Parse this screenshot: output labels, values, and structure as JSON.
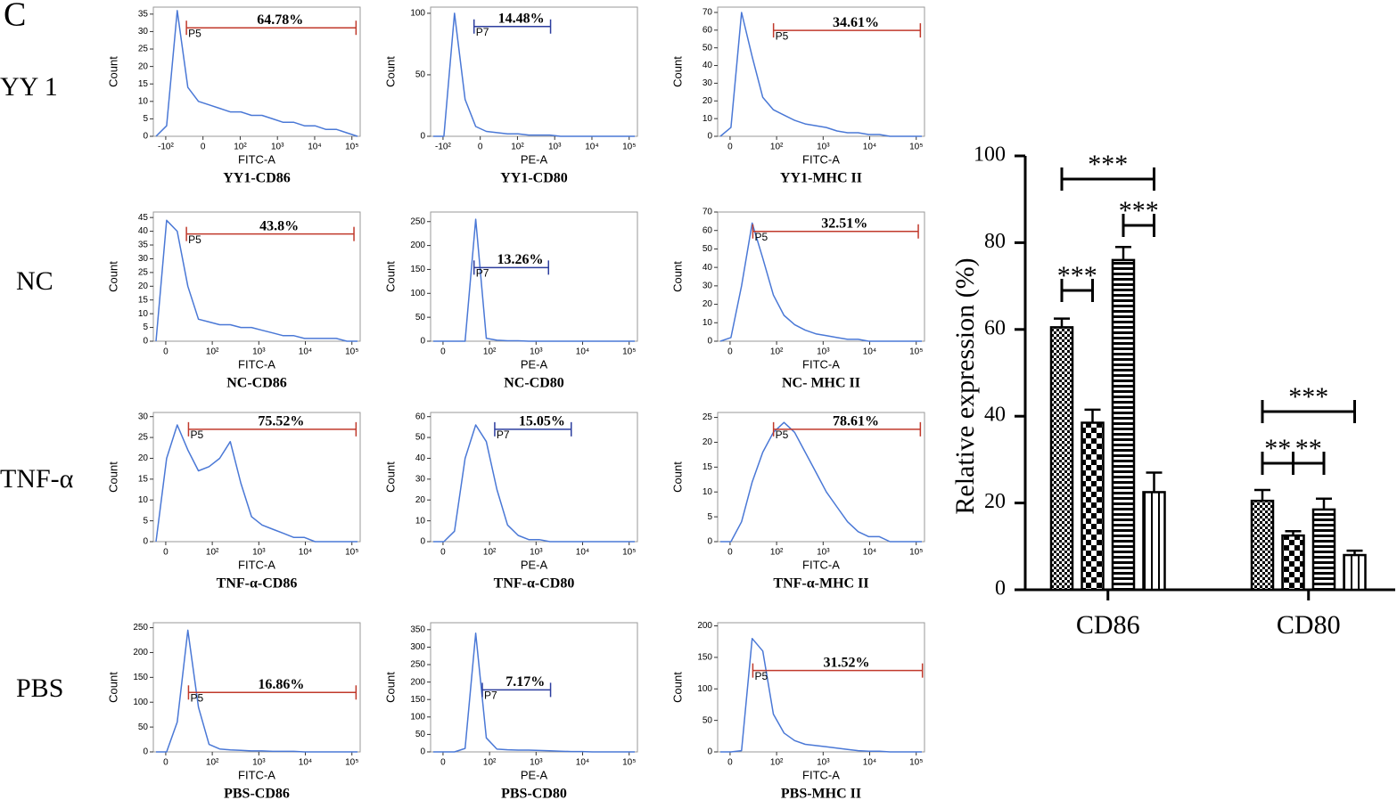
{
  "panel_label": "C",
  "row_labels": [
    "YY 1",
    "NC",
    "TNF-α",
    "PBS"
  ],
  "histograms": [
    {
      "title": "YY1-CD86",
      "gate": "P5",
      "percent": "64.78%",
      "x_label": "FITC-A",
      "y_label": "Count",
      "gate_color": "#c0392b",
      "ylim": [
        0,
        37
      ],
      "yticks": [
        0,
        5,
        10,
        15,
        20,
        25,
        30,
        35
      ],
      "xticks": [
        "-10²",
        "0",
        "10²",
        "10³",
        "10⁴",
        "10⁵"
      ],
      "counts": [
        0,
        3,
        36,
        14,
        10,
        9,
        8,
        7,
        7,
        6,
        6,
        5,
        4,
        4,
        3,
        3,
        2,
        2,
        1,
        0
      ]
    },
    {
      "title": "YY1-CD80",
      "gate": "P7",
      "percent": "14.48%",
      "x_label": "PE-A",
      "y_label": "Count",
      "gate_color": "#2c3e9e",
      "ylim": [
        0,
        105
      ],
      "yticks": [
        0,
        50,
        100
      ],
      "xticks": [
        "-10²",
        "0",
        "10²",
        "10³",
        "10⁴",
        "10⁵"
      ],
      "counts": [
        0,
        0,
        100,
        30,
        8,
        4,
        3,
        2,
        2,
        1,
        1,
        1,
        0,
        0,
        0,
        0,
        0,
        0,
        0,
        0
      ]
    },
    {
      "title": "YY1-MHC II",
      "gate": "P5",
      "percent": "34.61%",
      "x_label": "FITC-A",
      "y_label": "Count",
      "gate_color": "#c0392b",
      "ylim": [
        0,
        73
      ],
      "yticks": [
        0,
        10,
        20,
        30,
        40,
        50,
        60,
        70
      ],
      "xticks": [
        "0",
        "10²",
        "10³",
        "10⁴",
        "10⁵"
      ],
      "counts": [
        0,
        5,
        70,
        45,
        22,
        15,
        12,
        9,
        7,
        6,
        5,
        3,
        2,
        2,
        1,
        1,
        0,
        0,
        0,
        0
      ]
    },
    {
      "title": "NC-CD86",
      "gate": "P5",
      "percent": "43.8%",
      "x_label": "FITC-A",
      "y_label": "Count",
      "gate_color": "#c0392b",
      "ylim": [
        0,
        47
      ],
      "yticks": [
        0,
        5,
        10,
        15,
        20,
        25,
        30,
        35,
        40,
        45
      ],
      "xticks": [
        "0",
        "10²",
        "10³",
        "10⁴",
        "10⁵"
      ],
      "counts": [
        0,
        44,
        40,
        20,
        8,
        7,
        6,
        6,
        5,
        5,
        4,
        3,
        2,
        2,
        1,
        1,
        1,
        1,
        0,
        0
      ]
    },
    {
      "title": "NC-CD80",
      "gate": "P7",
      "percent": "13.26%",
      "x_label": "PE-A",
      "y_label": "Count",
      "gate_color": "#2c3e9e",
      "ylim": [
        0,
        270
      ],
      "yticks": [
        0,
        50,
        100,
        150,
        200,
        250
      ],
      "xticks": [
        "0",
        "10²",
        "10³",
        "10⁴",
        "10⁵"
      ],
      "counts": [
        0,
        0,
        0,
        0,
        255,
        6,
        2,
        1,
        1,
        0,
        0,
        0,
        0,
        0,
        0,
        0,
        0,
        0,
        0,
        0
      ]
    },
    {
      "title": "NC- MHC II",
      "gate": "P5",
      "percent": "32.51%",
      "x_label": "FITC-A",
      "y_label": "Count",
      "gate_color": "#c0392b",
      "ylim": [
        0,
        70
      ],
      "yticks": [
        0,
        10,
        20,
        30,
        40,
        50,
        60,
        70
      ],
      "xticks": [
        "0",
        "10²",
        "10³",
        "10⁴",
        "10⁵"
      ],
      "counts": [
        0,
        2,
        30,
        64,
        45,
        25,
        14,
        9,
        6,
        4,
        3,
        2,
        1,
        1,
        0,
        0,
        0,
        0,
        0,
        0
      ]
    },
    {
      "title": "TNF-α-CD86",
      "gate": "P5",
      "percent": "75.52%",
      "x_label": "FITC-A",
      "y_label": "Count",
      "gate_color": "#c0392b",
      "ylim": [
        0,
        31
      ],
      "yticks": [
        0,
        5,
        10,
        15,
        20,
        25,
        30
      ],
      "xticks": [
        "0",
        "10²",
        "10³",
        "10⁴",
        "10⁵"
      ],
      "counts": [
        0,
        20,
        28,
        22,
        17,
        18,
        20,
        24,
        14,
        6,
        4,
        3,
        2,
        1,
        1,
        0,
        0,
        0,
        0,
        0
      ]
    },
    {
      "title": "TNF-α-CD80",
      "gate": "P7",
      "percent": "15.05%",
      "x_label": "PE-A",
      "y_label": "Count",
      "gate_color": "#2c3e9e",
      "ylim": [
        0,
        62
      ],
      "yticks": [
        0,
        10,
        20,
        30,
        40,
        50,
        60
      ],
      "xticks": [
        "0",
        "10²",
        "10³",
        "10⁴",
        "10⁵"
      ],
      "counts": [
        0,
        0,
        5,
        40,
        56,
        48,
        25,
        8,
        3,
        1,
        1,
        0,
        0,
        0,
        0,
        0,
        0,
        0,
        0,
        0
      ]
    },
    {
      "title": "TNF-α-MHC II",
      "gate": "P5",
      "percent": "78.61%",
      "x_label": "FITC-A",
      "y_label": "Count",
      "gate_color": "#c0392b",
      "ylim": [
        0,
        26
      ],
      "yticks": [
        0,
        5,
        10,
        15,
        20,
        25
      ],
      "xticks": [
        "0",
        "10²",
        "10³",
        "10⁴",
        "10⁵"
      ],
      "counts": [
        0,
        0,
        4,
        12,
        18,
        22,
        24,
        22,
        18,
        14,
        10,
        7,
        4,
        2,
        1,
        1,
        0,
        0,
        0,
        0
      ]
    },
    {
      "title": "PBS-CD86",
      "gate": "P5",
      "percent": "16.86%",
      "x_label": "FITC-A",
      "y_label": "Count",
      "gate_color": "#c0392b",
      "ylim": [
        0,
        260
      ],
      "yticks": [
        0,
        50,
        100,
        150,
        200,
        250
      ],
      "xticks": [
        "0",
        "10²",
        "10³",
        "10⁴",
        "10⁵"
      ],
      "counts": [
        0,
        0,
        60,
        245,
        90,
        15,
        6,
        4,
        3,
        2,
        2,
        1,
        1,
        1,
        0,
        0,
        0,
        0,
        0,
        0
      ]
    },
    {
      "title": "PBS-CD80",
      "gate": "P7",
      "percent": "7.17%",
      "x_label": "PE-A",
      "y_label": "Count",
      "gate_color": "#2c3e9e",
      "ylim": [
        0,
        370
      ],
      "yticks": [
        0,
        50,
        100,
        150,
        200,
        250,
        300,
        350
      ],
      "xticks": [
        "0",
        "10²",
        "10³",
        "10⁴",
        "10⁵"
      ],
      "counts": [
        0,
        0,
        0,
        10,
        340,
        40,
        8,
        6,
        5,
        5,
        4,
        3,
        2,
        1,
        1,
        0,
        0,
        0,
        0,
        0
      ]
    },
    {
      "title": "PBS-MHC II",
      "gate": "P5",
      "percent": "31.52%",
      "x_label": "FITC-A",
      "y_label": "Count",
      "gate_color": "#c0392b",
      "ylim": [
        0,
        205
      ],
      "yticks": [
        0,
        50,
        100,
        150,
        200
      ],
      "xticks": [
        "0",
        "10²",
        "10³",
        "10⁴",
        "10⁵"
      ],
      "counts": [
        0,
        0,
        2,
        180,
        160,
        60,
        30,
        18,
        12,
        10,
        8,
        6,
        4,
        2,
        1,
        1,
        0,
        0,
        0,
        0
      ]
    }
  ],
  "chart_data": {
    "type": "bar",
    "y_label": "Relative expression (%)",
    "categories": [
      "CD86",
      "CD80"
    ],
    "ylim": [
      0,
      100
    ],
    "yticks": [
      0,
      20,
      40,
      60,
      80,
      100
    ],
    "series": [
      {
        "pattern": "fine-checker",
        "values": [
          60.5,
          20.5
        ],
        "errors": [
          2,
          2.5
        ]
      },
      {
        "pattern": "checker",
        "values": [
          38.5,
          12.5
        ],
        "errors": [
          3,
          1
        ]
      },
      {
        "pattern": "horizontal-stripes",
        "values": [
          76,
          18.5
        ],
        "errors": [
          3,
          2.5
        ]
      },
      {
        "pattern": "vertical-stripes",
        "values": [
          22.5,
          8
        ],
        "errors": [
          4.5,
          1
        ]
      }
    ],
    "annotations": [
      {
        "text": "***"
      },
      {
        "text": "***"
      },
      {
        "text": "***"
      },
      {
        "text": "***"
      },
      {
        "text": "**"
      },
      {
        "text": "**"
      }
    ]
  }
}
